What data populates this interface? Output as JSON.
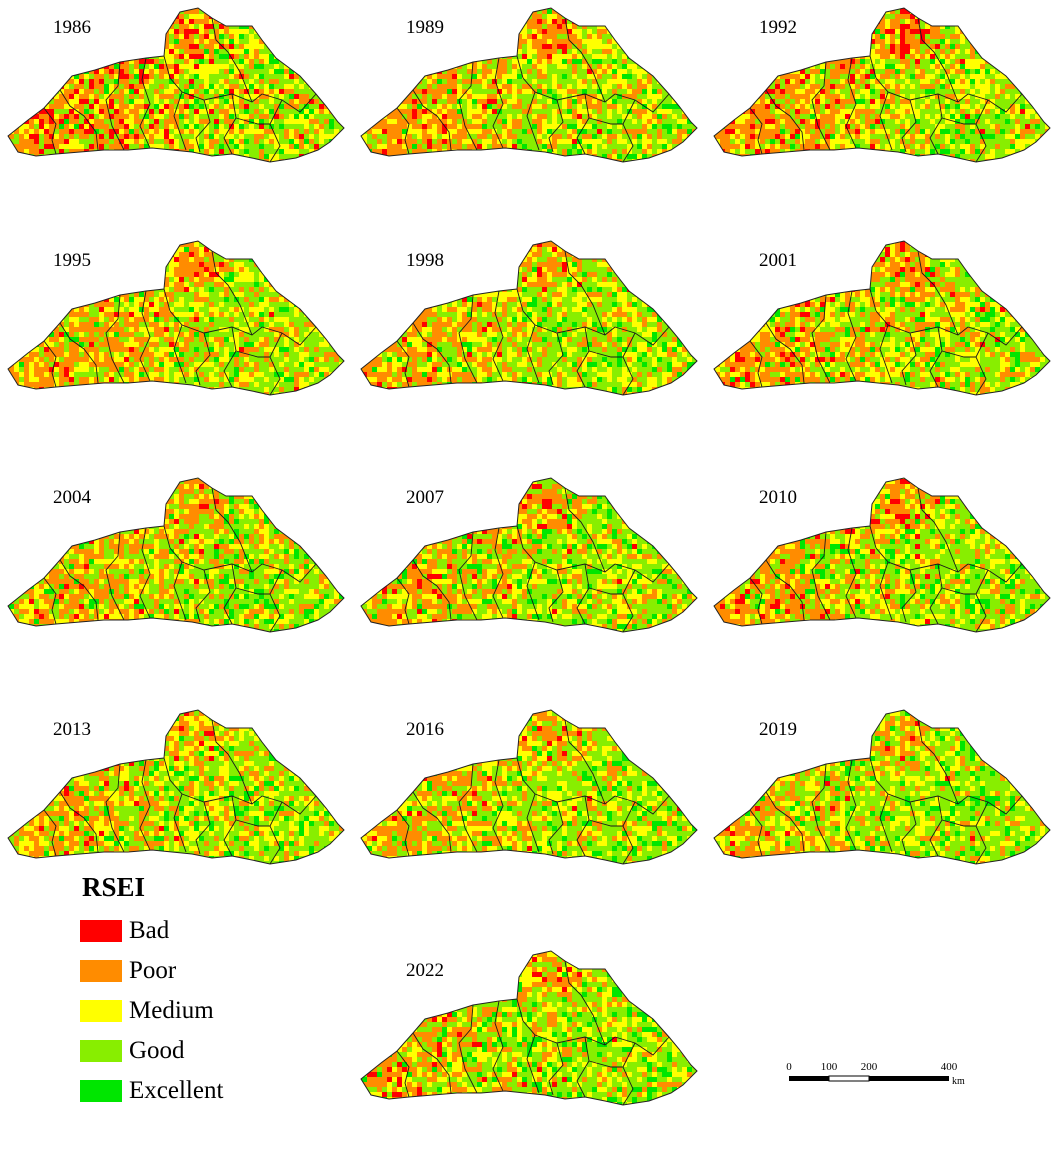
{
  "legend": {
    "title": "RSEI",
    "classes": [
      {
        "label": "Bad",
        "color": "#ff0000"
      },
      {
        "label": "Poor",
        "color": "#ff8c00"
      },
      {
        "label": "Medium",
        "color": "#ffff00"
      },
      {
        "label": "Good",
        "color": "#88ee00"
      },
      {
        "label": "Excellent",
        "color": "#00e600"
      }
    ]
  },
  "maps": [
    {
      "year": "1986",
      "class_shares": {
        "Bad": 0.14,
        "Poor": 0.36,
        "Medium": 0.22,
        "Good": 0.22,
        "Excellent": 0.06
      }
    },
    {
      "year": "1989",
      "class_shares": {
        "Bad": 0.06,
        "Poor": 0.4,
        "Medium": 0.24,
        "Good": 0.24,
        "Excellent": 0.06
      }
    },
    {
      "year": "1992",
      "class_shares": {
        "Bad": 0.08,
        "Poor": 0.38,
        "Medium": 0.24,
        "Good": 0.24,
        "Excellent": 0.06
      }
    },
    {
      "year": "1995",
      "class_shares": {
        "Bad": 0.03,
        "Poor": 0.4,
        "Medium": 0.24,
        "Good": 0.26,
        "Excellent": 0.07
      }
    },
    {
      "year": "1998",
      "class_shares": {
        "Bad": 0.03,
        "Poor": 0.36,
        "Medium": 0.25,
        "Good": 0.29,
        "Excellent": 0.07
      }
    },
    {
      "year": "2001",
      "class_shares": {
        "Bad": 0.05,
        "Poor": 0.38,
        "Medium": 0.24,
        "Good": 0.26,
        "Excellent": 0.07
      }
    },
    {
      "year": "2004",
      "class_shares": {
        "Bad": 0.03,
        "Poor": 0.38,
        "Medium": 0.22,
        "Good": 0.28,
        "Excellent": 0.09
      }
    },
    {
      "year": "2007",
      "class_shares": {
        "Bad": 0.04,
        "Poor": 0.36,
        "Medium": 0.22,
        "Good": 0.29,
        "Excellent": 0.09
      }
    },
    {
      "year": "2010",
      "class_shares": {
        "Bad": 0.05,
        "Poor": 0.36,
        "Medium": 0.22,
        "Good": 0.28,
        "Excellent": 0.09
      }
    },
    {
      "year": "2013",
      "class_shares": {
        "Bad": 0.02,
        "Poor": 0.32,
        "Medium": 0.24,
        "Good": 0.32,
        "Excellent": 0.1
      }
    },
    {
      "year": "2016",
      "class_shares": {
        "Bad": 0.02,
        "Poor": 0.32,
        "Medium": 0.24,
        "Good": 0.32,
        "Excellent": 0.1
      }
    },
    {
      "year": "2019",
      "class_shares": {
        "Bad": 0.02,
        "Poor": 0.28,
        "Medium": 0.24,
        "Good": 0.36,
        "Excellent": 0.1
      }
    },
    {
      "year": "2022",
      "class_shares": {
        "Bad": 0.03,
        "Poor": 0.32,
        "Medium": 0.23,
        "Good": 0.32,
        "Excellent": 0.1
      }
    }
  ],
  "scale_bar": {
    "ticks": [
      "0",
      "100",
      "200",
      "400"
    ],
    "unit": "km"
  }
}
